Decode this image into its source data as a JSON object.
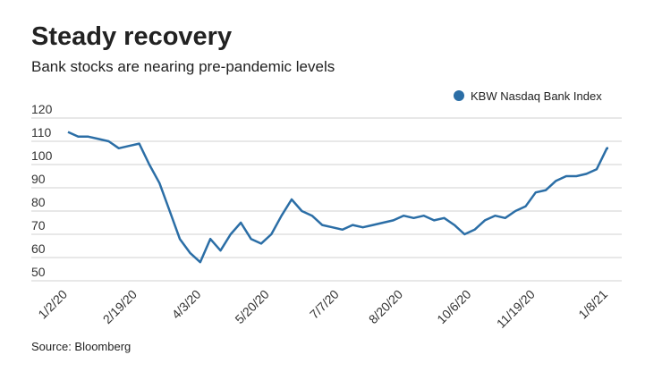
{
  "chart_data": {
    "type": "line",
    "title": "Steady recovery",
    "subtitle": "Bank stocks are nearing pre-pandemic levels",
    "source": "Source: Bloomberg",
    "x": [
      "1/2/20",
      "1/9/20",
      "1/16/20",
      "1/23/20",
      "1/30/20",
      "2/6/20",
      "2/13/20",
      "2/20/20",
      "2/27/20",
      "3/5/20",
      "3/12/20",
      "3/19/20",
      "3/26/20",
      "4/2/20",
      "4/9/20",
      "4/16/20",
      "4/23/20",
      "4/30/20",
      "5/7/20",
      "5/14/20",
      "5/21/20",
      "5/28/20",
      "6/4/20",
      "6/11/20",
      "6/18/20",
      "6/25/20",
      "7/2/20",
      "7/9/20",
      "7/16/20",
      "7/23/20",
      "7/30/20",
      "8/6/20",
      "8/13/20",
      "8/20/20",
      "8/27/20",
      "9/3/20",
      "9/10/20",
      "9/17/20",
      "9/24/20",
      "10/1/20",
      "10/8/20",
      "10/15/20",
      "10/22/20",
      "10/29/20",
      "11/5/20",
      "11/12/20",
      "11/19/20",
      "11/26/20",
      "12/3/20",
      "12/10/20",
      "12/17/20",
      "12/24/20",
      "12/31/20",
      "1/7/21",
      "1/8/21"
    ],
    "series": [
      {
        "name": "KBW Nasdaq Bank Index",
        "color": "#2b6ea6",
        "values": [
          114,
          112,
          112,
          111,
          110,
          107,
          108,
          109,
          100,
          92,
          80,
          68,
          62,
          58,
          68,
          63,
          70,
          75,
          68,
          66,
          70,
          78,
          85,
          80,
          78,
          74,
          73,
          72,
          74,
          73,
          74,
          75,
          76,
          78,
          77,
          78,
          76,
          77,
          74,
          70,
          72,
          76,
          78,
          77,
          80,
          82,
          88,
          89,
          93,
          95,
          95,
          96,
          98,
          107,
          107
        ]
      }
    ],
    "xlim": [
      "1/2/20",
      "1/8/21"
    ],
    "xticks": [
      "1/2/20",
      "2/19/20",
      "4/3/20",
      "5/20/20",
      "7/7/20",
      "8/20/20",
      "10/6/20",
      "11/19/20",
      "1/8/21"
    ],
    "ylim": [
      50,
      120
    ],
    "yticks": [
      50,
      60,
      70,
      80,
      90,
      100,
      110,
      120
    ],
    "grid": true,
    "legend": "top-right"
  }
}
